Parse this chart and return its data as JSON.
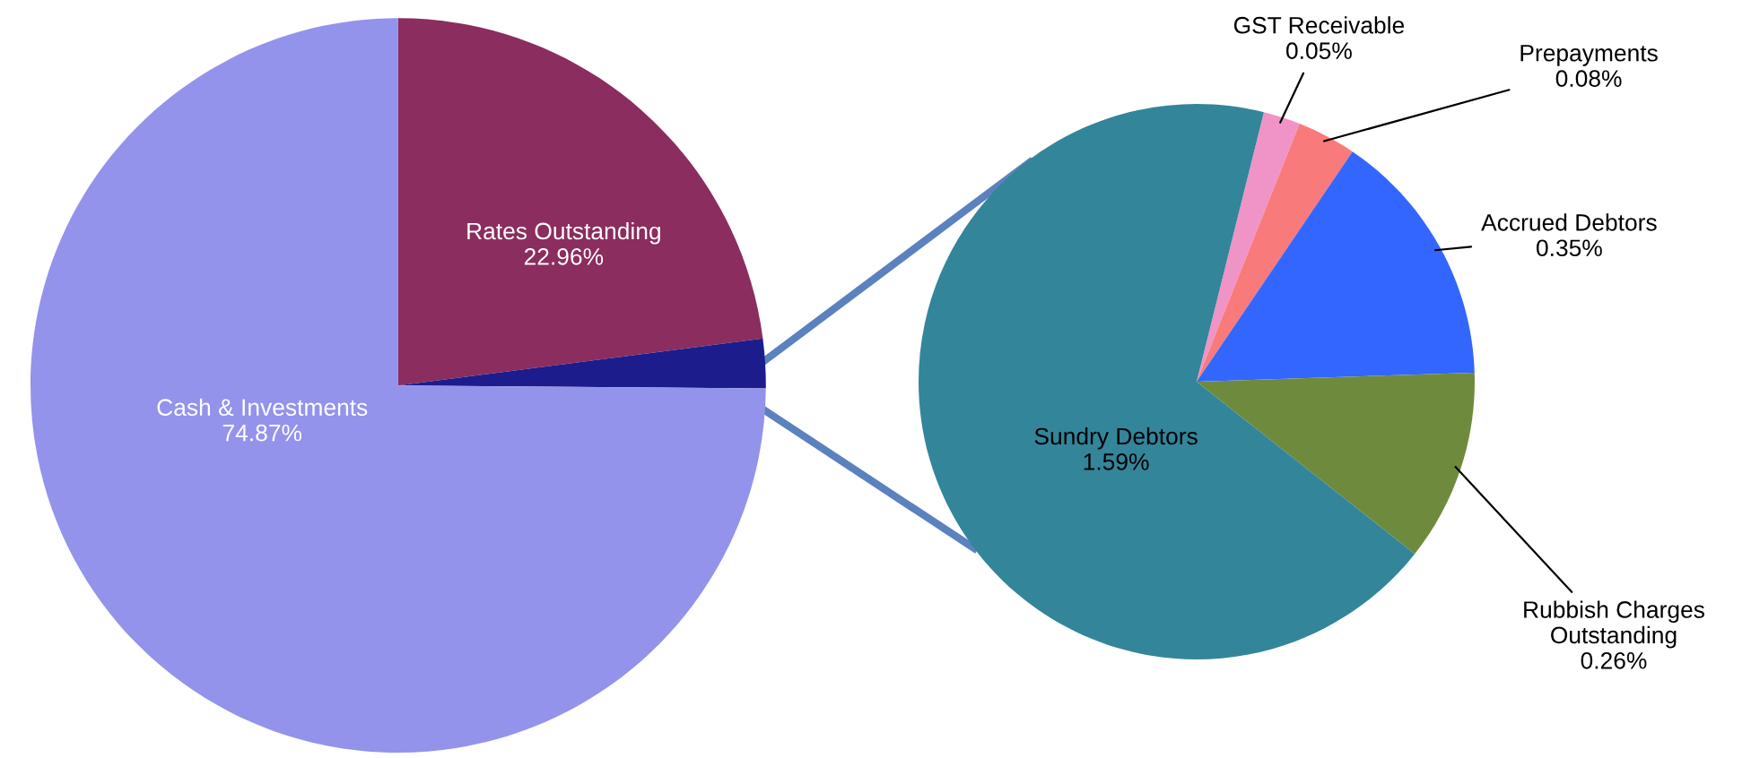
{
  "chart_data": [
    {
      "type": "pie",
      "categories": [
        "Rates Outstanding",
        null,
        "Cash & Investments"
      ],
      "values": [
        22.96,
        2.17,
        74.87
      ],
      "colors": [
        "#8b2d5e",
        "#1c1c8c",
        "#9393ec"
      ],
      "value_labels": [
        "22.96%",
        null,
        "74.87%"
      ]
    },
    {
      "type": "pie",
      "categories": [
        "GST Receivable",
        "Prepayments",
        "Accrued Debtors",
        "Rubbish Charges\nOutstanding",
        "Sundry Debtors"
      ],
      "values": [
        0.05,
        0.08,
        0.35,
        0.26,
        1.59
      ],
      "colors": [
        "#f093c6",
        "#f87a7a",
        "#3366ff",
        "#6e8b3d",
        "#33859a"
      ],
      "value_labels": [
        "0.05%",
        "0.08%",
        "0.35%",
        "0.26%",
        "1.59%"
      ]
    }
  ]
}
